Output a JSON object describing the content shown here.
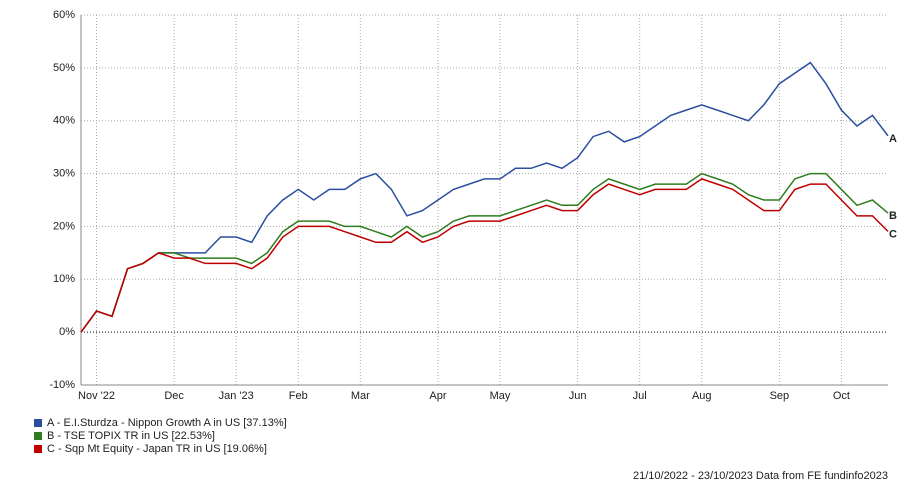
{
  "chart_data": {
    "type": "line",
    "categories": [
      null,
      "Nov '22",
      null,
      null,
      null,
      null,
      "Dec",
      null,
      null,
      null,
      "Jan '23",
      null,
      null,
      null,
      "Feb",
      null,
      null,
      null,
      "Mar",
      null,
      null,
      null,
      null,
      "Apr",
      null,
      null,
      null,
      "May",
      null,
      null,
      null,
      null,
      "Jun",
      null,
      null,
      null,
      "Jul",
      null,
      null,
      null,
      "Aug",
      null,
      null,
      null,
      null,
      "Sep",
      null,
      null,
      null,
      "Oct",
      null,
      null,
      null
    ],
    "series": [
      {
        "name": "A - E.I.Sturdza - Nippon Growth A in US [37.13%]",
        "end_label": "A",
        "color": "#2b4ea0",
        "values": [
          0,
          4,
          3,
          12,
          13,
          15,
          15,
          15,
          15,
          18,
          18,
          17,
          22,
          25,
          27,
          25,
          27,
          27,
          29,
          30,
          27,
          22,
          23,
          25,
          27,
          28,
          29,
          29,
          31,
          31,
          32,
          31,
          33,
          37,
          38,
          36,
          37,
          39,
          41,
          42,
          43,
          42,
          41,
          40,
          43,
          47,
          49,
          51,
          47,
          42,
          39,
          41,
          37.13
        ]
      },
      {
        "name": "B - TSE TOPIX TR in US [22.53%]",
        "end_label": "B",
        "color": "#2e7d1e",
        "values": [
          0,
          4,
          3,
          12,
          13,
          15,
          15,
          14,
          14,
          14,
          14,
          13,
          15,
          19,
          21,
          21,
          21,
          20,
          20,
          19,
          18,
          20,
          18,
          19,
          21,
          22,
          22,
          22,
          23,
          24,
          25,
          24,
          24,
          27,
          29,
          28,
          27,
          28,
          28,
          28,
          30,
          29,
          28,
          26,
          25,
          25,
          29,
          30,
          30,
          27,
          24,
          25,
          22.53
        ]
      },
      {
        "name": "C - Sqp Mt Equity - Japan TR in US [19.06%]",
        "end_label": "C",
        "color": "#c00000",
        "values": [
          0,
          4,
          3,
          12,
          13,
          15,
          14,
          14,
          13,
          13,
          13,
          12,
          14,
          18,
          20,
          20,
          20,
          19,
          18,
          17,
          17,
          19,
          17,
          18,
          20,
          21,
          21,
          21,
          22,
          23,
          24,
          23,
          23,
          26,
          28,
          27,
          26,
          27,
          27,
          27,
          29,
          28,
          27,
          25,
          23,
          23,
          27,
          28,
          28,
          25,
          22,
          22,
          19.06
        ]
      }
    ],
    "ylim": [
      -10,
      60
    ],
    "yticks": [
      {
        "value": -10,
        "label": "-10%"
      },
      {
        "value": 0,
        "label": "0%"
      },
      {
        "value": 10,
        "label": "10%"
      },
      {
        "value": 20,
        "label": "20%"
      },
      {
        "value": 30,
        "label": "30%"
      },
      {
        "value": 40,
        "label": "40%"
      },
      {
        "value": 50,
        "label": "50%"
      },
      {
        "value": 60,
        "label": "60%"
      }
    ],
    "grid": true,
    "footer": "21/10/2022 - 23/10/2023 Data from FE fundinfo2023"
  }
}
